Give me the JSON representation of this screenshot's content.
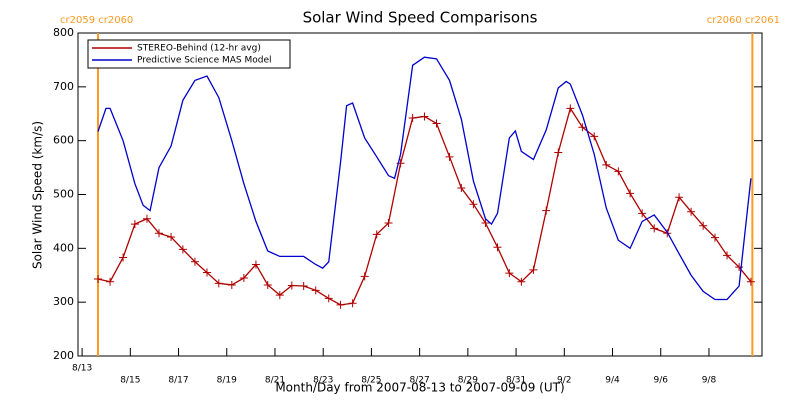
{
  "chart_data": {
    "type": "line",
    "title": "Solar Wind Speed Comparisons",
    "x_label": "Month/Day from 2007-08-13 to 2007-09-09 (UT)",
    "y_label": "Solar Wind Speed (km/s)",
    "xlim": [
      -0.17,
      28.2
    ],
    "ylim": [
      200,
      800
    ],
    "yticks": [
      200,
      300,
      400,
      500,
      600,
      700,
      800
    ],
    "xticks": [
      {
        "value": 0,
        "label": "8/13"
      },
      {
        "value": 2,
        "label": "8/15"
      },
      {
        "value": 4,
        "label": "8/17"
      },
      {
        "value": 6,
        "label": "8/19"
      },
      {
        "value": 8,
        "label": "8/21"
      },
      {
        "value": 10,
        "label": "8/23"
      },
      {
        "value": 12,
        "label": "8/25"
      },
      {
        "value": 14,
        "label": "8/27"
      },
      {
        "value": 16,
        "label": "8/29"
      },
      {
        "value": 18,
        "label": "8/31"
      },
      {
        "value": 20,
        "label": "9/2"
      },
      {
        "value": 22,
        "label": "9/4"
      },
      {
        "value": 24,
        "label": "9/6"
      },
      {
        "value": 26,
        "label": "9/8"
      }
    ],
    "grid": false,
    "legend": "top-left",
    "boundaries": [
      {
        "x": 0.66,
        "label": "cr2059 cr2060",
        "color": "#ff9a20"
      },
      {
        "x": 27.8,
        "label": "cr2060 cr2061",
        "color": "#ff9a20"
      }
    ],
    "series": [
      {
        "name": "STEREO-Behind (12-hr avg)",
        "color": "#b00000",
        "markers": true,
        "x": [
          0.66,
          1.16,
          1.7,
          2.19,
          2.69,
          3.19,
          3.69,
          4.18,
          4.68,
          5.18,
          5.67,
          6.21,
          6.71,
          7.21,
          7.7,
          8.2,
          8.7,
          9.19,
          9.69,
          10.23,
          10.72,
          11.22,
          11.72,
          12.22,
          12.71,
          13.21,
          13.71,
          14.2,
          14.7,
          15.24,
          15.73,
          16.23,
          16.73,
          17.23,
          17.72,
          18.22,
          18.72,
          19.25,
          19.75,
          20.25,
          20.75,
          21.24,
          21.74,
          22.24,
          22.73,
          23.23,
          23.73,
          24.27,
          24.76,
          25.26,
          25.76,
          26.25,
          26.75,
          27.25,
          27.74
        ],
        "values": [
          343,
          338,
          383,
          445,
          455,
          428,
          421,
          398,
          375,
          355,
          335,
          332,
          345,
          370,
          332,
          313,
          331,
          330,
          322,
          307,
          295,
          298,
          348,
          426,
          447,
          558,
          642,
          645,
          632,
          570,
          512,
          482,
          447,
          402,
          354,
          338,
          360,
          470,
          578,
          660,
          625,
          608,
          555,
          543,
          502,
          465,
          437,
          428,
          495,
          468,
          442,
          420,
          387,
          365,
          338
        ]
      },
      {
        "name": "Predictive Science MAS Model",
        "color": "#0000cc",
        "markers": false,
        "x": [
          0.66,
          0.99,
          1.16,
          1.7,
          2.19,
          2.53,
          2.82,
          3.19,
          3.69,
          4.18,
          4.68,
          5.18,
          5.67,
          6.21,
          6.71,
          7.21,
          7.7,
          8.2,
          8.7,
          9.19,
          9.69,
          9.98,
          10.23,
          10.72,
          10.97,
          11.22,
          11.72,
          12.22,
          12.71,
          12.96,
          13.21,
          13.71,
          14.2,
          14.7,
          15.24,
          15.73,
          16.23,
          16.73,
          16.98,
          17.23,
          17.72,
          17.97,
          18.22,
          18.72,
          19.25,
          19.75,
          20.08,
          20.25,
          20.75,
          21.24,
          21.74,
          22.24,
          22.73,
          23.23,
          23.73,
          24.27,
          24.76,
          25.26,
          25.76,
          26.25,
          26.75,
          27.25,
          27.74
        ],
        "values": [
          617,
          660,
          660,
          600,
          520,
          480,
          470,
          550,
          590,
          675,
          712,
          720,
          680,
          600,
          520,
          450,
          395,
          385,
          385,
          385,
          370,
          363,
          375,
          560,
          665,
          670,
          605,
          570,
          535,
          530,
          575,
          740,
          755,
          752,
          712,
          640,
          525,
          455,
          445,
          465,
          605,
          618,
          580,
          565,
          620,
          698,
          710,
          705,
          648,
          575,
          475,
          415,
          400,
          450,
          462,
          430,
          390,
          350,
          320,
          305,
          305,
          330,
          530
        ]
      }
    ]
  }
}
